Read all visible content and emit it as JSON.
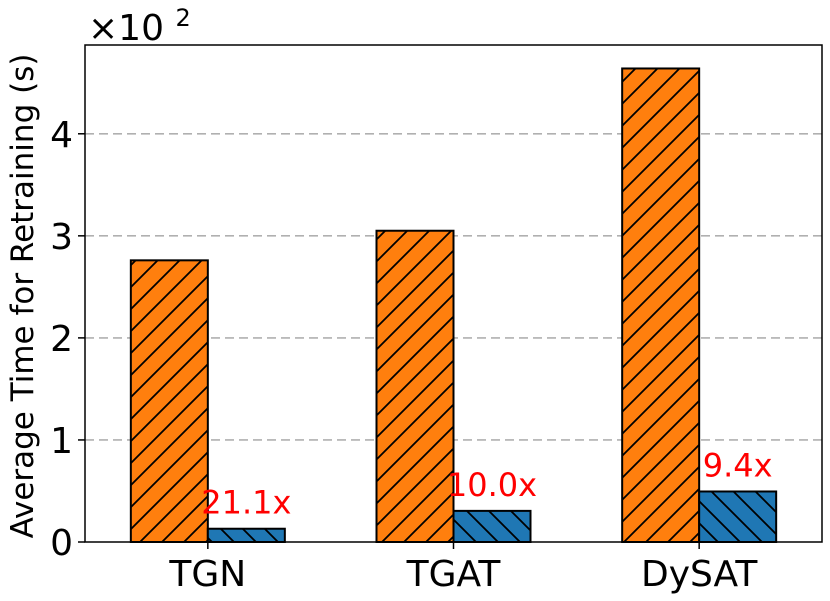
{
  "chart_data": {
    "type": "bar",
    "categories": [
      "TGN",
      "TGAT",
      "DySAT"
    ],
    "series": [
      {
        "values": [
          276,
          305,
          464
        ],
        "color": "#ff7f0e",
        "hatch": "forward-diagonal"
      },
      {
        "values": [
          13,
          30.5,
          49.5
        ],
        "color": "#1f77b4",
        "hatch": "backward-diagonal"
      }
    ],
    "annotations": [
      "21.1x",
      "10.0x",
      "9.4x"
    ],
    "annotation_color": "#ff0000",
    "ylabel": "Average Time for Retraining (s)",
    "y_multiplier_label": "×10",
    "y_multiplier_exp": "2",
    "yticks": [
      0,
      100,
      200,
      300,
      400
    ],
    "ytick_labels": [
      "0",
      "1",
      "2",
      "3",
      "4"
    ],
    "ylim": [
      0,
      487
    ],
    "grid": "horizontal-dashed"
  }
}
